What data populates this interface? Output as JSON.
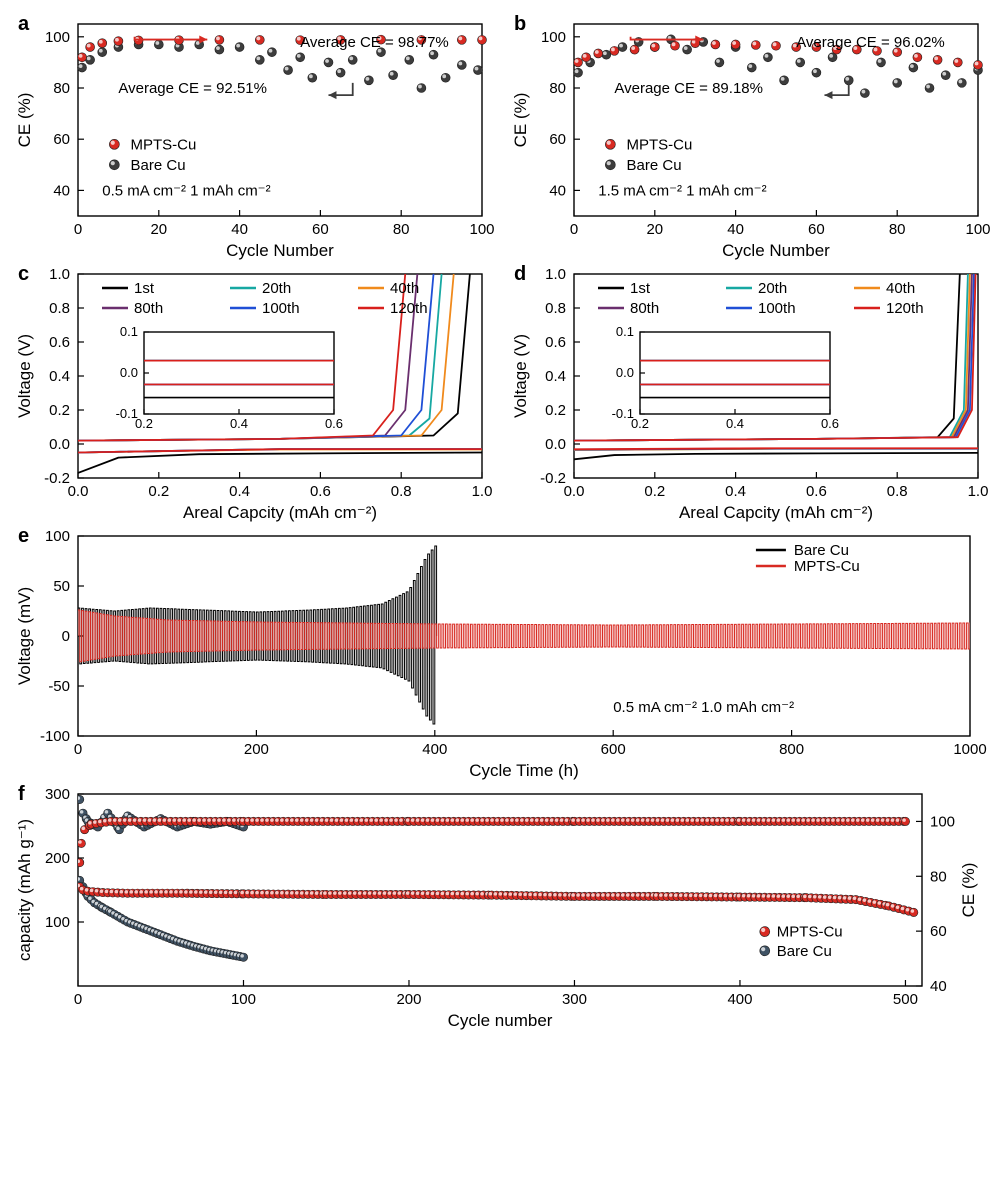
{
  "colors": {
    "mpts": "#d82a22",
    "bare": "#3d3d3d",
    "bare_f": "#3f5264",
    "black": "#000000",
    "cyan": "#17a8a2",
    "orange": "#f08a1c",
    "purple": "#6a2f6e",
    "blue": "#1f4fd6",
    "red": "#d8201c"
  },
  "panelA": {
    "letter": "a",
    "xlabel": "Cycle Number",
    "ylabel": "CE (%)",
    "xlim": [
      0,
      100
    ],
    "xticks": [
      0,
      20,
      40,
      60,
      80,
      100
    ],
    "ylim": [
      30,
      105
    ],
    "yticks": [
      40,
      60,
      80,
      100
    ],
    "annot_mpts": "Average CE = 98.77%",
    "annot_bare": "Average CE = 92.51%",
    "legend_mpts": "MPTS-Cu",
    "legend_bare": "Bare Cu",
    "cond": "0.5 mA cm⁻²  1 mAh cm⁻²",
    "mpts": [
      [
        1,
        92
      ],
      [
        3,
        96
      ],
      [
        6,
        97.5
      ],
      [
        10,
        98.3
      ],
      [
        15,
        98.6
      ],
      [
        25,
        98.7
      ],
      [
        35,
        98.8
      ],
      [
        45,
        98.8
      ],
      [
        55,
        98.7
      ],
      [
        65,
        98.8
      ],
      [
        75,
        98.9
      ],
      [
        85,
        98.8
      ],
      [
        95,
        98.8
      ],
      [
        100,
        98.8
      ]
    ],
    "bare": [
      [
        1,
        88
      ],
      [
        3,
        91
      ],
      [
        6,
        94
      ],
      [
        10,
        96
      ],
      [
        15,
        97
      ],
      [
        20,
        97
      ],
      [
        25,
        96
      ],
      [
        30,
        97
      ],
      [
        35,
        95
      ],
      [
        40,
        96
      ],
      [
        45,
        91
      ],
      [
        48,
        94
      ],
      [
        52,
        87
      ],
      [
        55,
        92
      ],
      [
        58,
        84
      ],
      [
        62,
        90
      ],
      [
        65,
        86
      ],
      [
        68,
        91
      ],
      [
        72,
        83
      ],
      [
        75,
        94
      ],
      [
        78,
        85
      ],
      [
        82,
        91
      ],
      [
        85,
        80
      ],
      [
        88,
        93
      ],
      [
        91,
        84
      ],
      [
        95,
        89
      ],
      [
        99,
        87
      ]
    ]
  },
  "panelB": {
    "letter": "b",
    "xlabel": "Cycle Number",
    "ylabel": "CE (%)",
    "xlim": [
      0,
      100
    ],
    "xticks": [
      0,
      20,
      40,
      60,
      80,
      100
    ],
    "ylim": [
      30,
      105
    ],
    "yticks": [
      40,
      60,
      80,
      100
    ],
    "annot_mpts": "Average CE = 96.02%",
    "annot_bare": "Average CE = 89.18%",
    "legend_mpts": "MPTS-Cu",
    "legend_bare": "Bare Cu",
    "cond": "1.5 mA cm⁻² 1 mAh cm⁻²",
    "mpts": [
      [
        1,
        90
      ],
      [
        3,
        92
      ],
      [
        6,
        93.5
      ],
      [
        10,
        94.5
      ],
      [
        15,
        95
      ],
      [
        20,
        96
      ],
      [
        25,
        96.5
      ],
      [
        30,
        97.5
      ],
      [
        35,
        97
      ],
      [
        40,
        97
      ],
      [
        45,
        96.8
      ],
      [
        50,
        96.5
      ],
      [
        55,
        96
      ],
      [
        60,
        96
      ],
      [
        65,
        95
      ],
      [
        70,
        95
      ],
      [
        75,
        94.5
      ],
      [
        80,
        94
      ],
      [
        85,
        92
      ],
      [
        90,
        91
      ],
      [
        95,
        90
      ],
      [
        100,
        89
      ]
    ],
    "bare": [
      [
        1,
        86
      ],
      [
        4,
        90
      ],
      [
        8,
        93
      ],
      [
        12,
        96
      ],
      [
        16,
        98
      ],
      [
        20,
        96
      ],
      [
        24,
        99
      ],
      [
        28,
        95
      ],
      [
        32,
        98
      ],
      [
        36,
        90
      ],
      [
        40,
        96
      ],
      [
        44,
        88
      ],
      [
        48,
        92
      ],
      [
        52,
        83
      ],
      [
        56,
        90
      ],
      [
        60,
        86
      ],
      [
        64,
        92
      ],
      [
        68,
        83
      ],
      [
        72,
        78
      ],
      [
        76,
        90
      ],
      [
        80,
        82
      ],
      [
        84,
        88
      ],
      [
        88,
        80
      ],
      [
        92,
        85
      ],
      [
        96,
        82
      ],
      [
        100,
        87
      ]
    ]
  },
  "panelC": {
    "letter": "c",
    "xlabel": "Areal Capcity (mAh cm⁻²)",
    "ylabel": "Voltage (V)",
    "xlim": [
      0,
      1.0
    ],
    "xticks": [
      0.0,
      0.2,
      0.4,
      0.6,
      0.8,
      1.0
    ],
    "ylim": [
      -0.2,
      1.0
    ],
    "yticks": [
      -0.2,
      0.0,
      0.2,
      0.4,
      0.6,
      0.8,
      1.0
    ],
    "legend_labels": [
      "1st",
      "20th",
      "40th",
      "80th",
      "100th",
      "120th"
    ],
    "legend_colors": [
      "black",
      "cyan",
      "orange",
      "purple",
      "blue",
      "red"
    ],
    "charges": {
      "1st": [
        [
          0,
          0.02
        ],
        [
          0.5,
          0.03
        ],
        [
          0.88,
          0.05
        ],
        [
          0.94,
          0.18
        ],
        [
          0.97,
          1.0
        ]
      ],
      "20th": [
        [
          0,
          0.02
        ],
        [
          0.5,
          0.03
        ],
        [
          0.82,
          0.05
        ],
        [
          0.87,
          0.15
        ],
        [
          0.9,
          1.0
        ]
      ],
      "40th": [
        [
          0,
          0.02
        ],
        [
          0.5,
          0.03
        ],
        [
          0.85,
          0.05
        ],
        [
          0.9,
          0.2
        ],
        [
          0.93,
          1.0
        ]
      ],
      "80th": [
        [
          0,
          0.02
        ],
        [
          0.5,
          0.03
        ],
        [
          0.76,
          0.05
        ],
        [
          0.81,
          0.2
        ],
        [
          0.84,
          1.0
        ]
      ],
      "100th": [
        [
          0,
          0.02
        ],
        [
          0.5,
          0.03
        ],
        [
          0.8,
          0.05
        ],
        [
          0.85,
          0.2
        ],
        [
          0.88,
          1.0
        ]
      ],
      "120th": [
        [
          0,
          0.02
        ],
        [
          0.5,
          0.03
        ],
        [
          0.73,
          0.05
        ],
        [
          0.78,
          0.2
        ],
        [
          0.81,
          1.0
        ]
      ]
    },
    "discharges": {
      "1st": [
        [
          0,
          -0.17
        ],
        [
          0.1,
          -0.08
        ],
        [
          0.3,
          -0.06
        ],
        [
          0.6,
          -0.055
        ],
        [
          1.0,
          -0.05
        ]
      ],
      "20th": [
        [
          0,
          -0.05
        ],
        [
          0.5,
          -0.03
        ],
        [
          1.0,
          -0.03
        ]
      ],
      "40th": [
        [
          0,
          -0.05
        ],
        [
          0.5,
          -0.032
        ],
        [
          1.0,
          -0.032
        ]
      ],
      "80th": [
        [
          0,
          -0.05
        ],
        [
          0.5,
          -0.03
        ],
        [
          1.0,
          -0.03
        ]
      ],
      "100th": [
        [
          0,
          -0.05
        ],
        [
          0.5,
          -0.03
        ],
        [
          1.0,
          -0.03
        ]
      ],
      "120th": [
        [
          0,
          -0.05
        ],
        [
          0.5,
          -0.03
        ],
        [
          1.0,
          -0.03
        ]
      ]
    },
    "inset": {
      "xlim": [
        0.2,
        0.6
      ],
      "ylim": [
        -0.1,
        0.1
      ],
      "yticks": [
        -0.1,
        0.0,
        0.1
      ],
      "xticks": [
        0.2,
        0.4,
        0.6
      ]
    }
  },
  "panelD": {
    "letter": "d",
    "xlabel": "Areal Capcity (mAh cm⁻²)",
    "ylabel": "Voltage (V)",
    "xlim": [
      0,
      1.0
    ],
    "xticks": [
      0.0,
      0.2,
      0.4,
      0.6,
      0.8,
      1.0
    ],
    "ylim": [
      -0.2,
      1.0
    ],
    "yticks": [
      -0.2,
      0.0,
      0.2,
      0.4,
      0.6,
      0.8,
      1.0
    ],
    "legend_labels": [
      "1st",
      "20th",
      "40th",
      "80th",
      "100th",
      "120th"
    ],
    "legend_colors": [
      "black",
      "cyan",
      "orange",
      "purple",
      "blue",
      "red"
    ],
    "charges": {
      "1st": [
        [
          0,
          0.02
        ],
        [
          0.6,
          0.03
        ],
        [
          0.9,
          0.04
        ],
        [
          0.94,
          0.15
        ],
        [
          0.955,
          1.0
        ]
      ],
      "20th": [
        [
          0,
          0.02
        ],
        [
          0.6,
          0.03
        ],
        [
          0.93,
          0.04
        ],
        [
          0.965,
          0.2
        ],
        [
          0.975,
          1.0
        ]
      ],
      "40th": [
        [
          0,
          0.02
        ],
        [
          0.6,
          0.03
        ],
        [
          0.935,
          0.04
        ],
        [
          0.97,
          0.2
        ],
        [
          0.98,
          1.0
        ]
      ],
      "80th": [
        [
          0,
          0.02
        ],
        [
          0.6,
          0.03
        ],
        [
          0.94,
          0.04
        ],
        [
          0.975,
          0.2
        ],
        [
          0.985,
          1.0
        ]
      ],
      "100th": [
        [
          0,
          0.02
        ],
        [
          0.6,
          0.03
        ],
        [
          0.945,
          0.04
        ],
        [
          0.98,
          0.2
        ],
        [
          0.99,
          1.0
        ]
      ],
      "120th": [
        [
          0,
          0.02
        ],
        [
          0.6,
          0.03
        ],
        [
          0.95,
          0.04
        ],
        [
          0.985,
          0.2
        ],
        [
          0.994,
          1.0
        ]
      ]
    },
    "discharges": {
      "1st": [
        [
          0,
          -0.09
        ],
        [
          0.1,
          -0.065
        ],
        [
          0.3,
          -0.058
        ],
        [
          0.6,
          -0.055
        ],
        [
          1.0,
          -0.052
        ]
      ],
      "20th": [
        [
          0,
          -0.035
        ],
        [
          0.5,
          -0.028
        ],
        [
          1.0,
          -0.028
        ]
      ],
      "40th": [
        [
          0,
          -0.035
        ],
        [
          0.5,
          -0.028
        ],
        [
          1.0,
          -0.028
        ]
      ],
      "80th": [
        [
          0,
          -0.033
        ],
        [
          0.5,
          -0.027
        ],
        [
          1.0,
          -0.027
        ]
      ],
      "100th": [
        [
          0,
          -0.032
        ],
        [
          0.5,
          -0.026
        ],
        [
          1.0,
          -0.026
        ]
      ],
      "120th": [
        [
          0,
          -0.031
        ],
        [
          0.5,
          -0.025
        ],
        [
          1.0,
          -0.025
        ]
      ]
    },
    "inset": {
      "xlim": [
        0.2,
        0.6
      ],
      "ylim": [
        -0.1,
        0.1
      ],
      "yticks": [
        -0.1,
        0.0,
        0.1
      ],
      "xticks": [
        0.2,
        0.4,
        0.6
      ]
    }
  },
  "panelE": {
    "letter": "e",
    "xlabel": "Cycle Time (h)",
    "ylabel": "Voltage (mV)",
    "xlim": [
      0,
      1000
    ],
    "xticks": [
      0,
      200,
      400,
      600,
      800,
      1000
    ],
    "ylim": [
      -100,
      100
    ],
    "yticks": [
      -100,
      -50,
      0,
      50,
      100
    ],
    "legend_bare": "Bare Cu",
    "legend_mpts": "MPTS-Cu",
    "cond": "0.5 mA cm⁻²    1.0 mAh cm⁻²",
    "bare_env": [
      [
        0,
        28
      ],
      [
        40,
        25
      ],
      [
        80,
        28
      ],
      [
        140,
        26
      ],
      [
        200,
        24
      ],
      [
        260,
        26
      ],
      [
        300,
        28
      ],
      [
        340,
        32
      ],
      [
        370,
        45
      ],
      [
        390,
        80
      ],
      [
        400,
        90
      ]
    ],
    "bare_cut": 400,
    "mpts_env": [
      [
        0,
        26
      ],
      [
        40,
        20
      ],
      [
        100,
        16
      ],
      [
        200,
        14
      ],
      [
        400,
        12
      ],
      [
        600,
        11
      ],
      [
        800,
        12
      ],
      [
        1000,
        13
      ]
    ]
  },
  "panelF": {
    "letter": "f",
    "xlabel": "Cycle number",
    "ylabel": "capacity (mAh g⁻¹)",
    "y2label": "CE (%)",
    "xlim": [
      0,
      510
    ],
    "xticks": [
      0,
      100,
      200,
      300,
      400,
      500
    ],
    "ylim": [
      0,
      300
    ],
    "yticks": [
      100,
      200,
      300
    ],
    "y2lim": [
      40,
      110
    ],
    "y2ticks": [
      40,
      60,
      80,
      100
    ],
    "legend_mpts": "MPTS-Cu",
    "legend_bare": "Bare Cu",
    "mpts_cap": [
      [
        1,
        155
      ],
      [
        3,
        150
      ],
      [
        6,
        148
      ],
      [
        15,
        146
      ],
      [
        30,
        145
      ],
      [
        60,
        145
      ],
      [
        100,
        144
      ],
      [
        150,
        143
      ],
      [
        200,
        143
      ],
      [
        250,
        142
      ],
      [
        300,
        140
      ],
      [
        350,
        140
      ],
      [
        400,
        139
      ],
      [
        440,
        138
      ],
      [
        470,
        135
      ],
      [
        490,
        125
      ],
      [
        505,
        115
      ]
    ],
    "bare_cap": [
      [
        1,
        165
      ],
      [
        3,
        155
      ],
      [
        6,
        140
      ],
      [
        10,
        130
      ],
      [
        15,
        122
      ],
      [
        20,
        115
      ],
      [
        30,
        100
      ],
      [
        40,
        90
      ],
      [
        50,
        80
      ],
      [
        60,
        70
      ],
      [
        70,
        62
      ],
      [
        80,
        55
      ],
      [
        90,
        50
      ],
      [
        100,
        45
      ]
    ],
    "mpts_ce": [
      [
        1,
        85
      ],
      [
        2,
        92
      ],
      [
        4,
        97
      ],
      [
        8,
        99
      ],
      [
        20,
        100
      ],
      [
        50,
        100
      ],
      [
        100,
        100
      ],
      [
        200,
        100
      ],
      [
        300,
        100
      ],
      [
        400,
        100
      ],
      [
        500,
        100
      ]
    ],
    "bare_ce": [
      [
        1,
        108
      ],
      [
        3,
        103
      ],
      [
        6,
        100
      ],
      [
        12,
        98
      ],
      [
        18,
        103
      ],
      [
        25,
        97
      ],
      [
        30,
        102
      ],
      [
        40,
        98
      ],
      [
        50,
        101
      ],
      [
        60,
        98
      ],
      [
        70,
        100
      ],
      [
        80,
        99
      ],
      [
        90,
        100
      ],
      [
        100,
        98
      ]
    ]
  }
}
